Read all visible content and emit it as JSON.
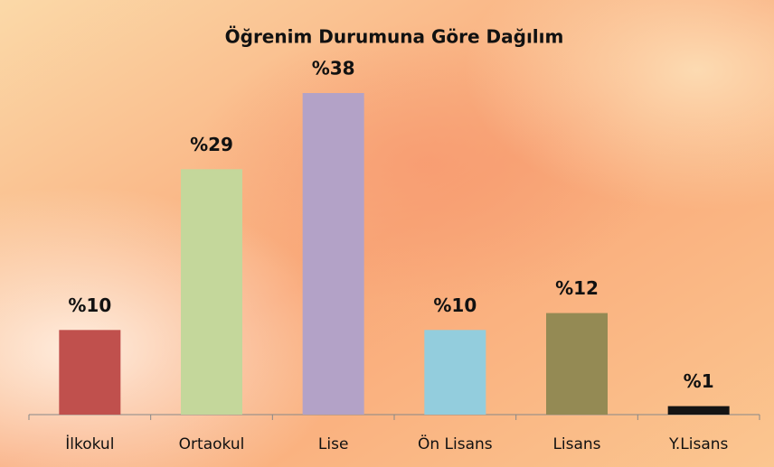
{
  "chart_data": {
    "type": "bar",
    "title": "Öğrenim Durumuna Göre Dağılım",
    "categories": [
      "İlkokul",
      "Ortaokul",
      "Lise",
      "Ön Lisans",
      "Lisans",
      "Y.Lisans"
    ],
    "values": [
      10,
      29,
      38,
      10,
      12,
      1
    ],
    "value_labels": [
      "%10",
      "%29",
      "%38",
      "%10",
      "%12",
      "%1"
    ],
    "colors": [
      "#c0504d",
      "#c4d79b",
      "#b3a2c7",
      "#93cddd",
      "#948a54",
      "#141414"
    ]
  }
}
